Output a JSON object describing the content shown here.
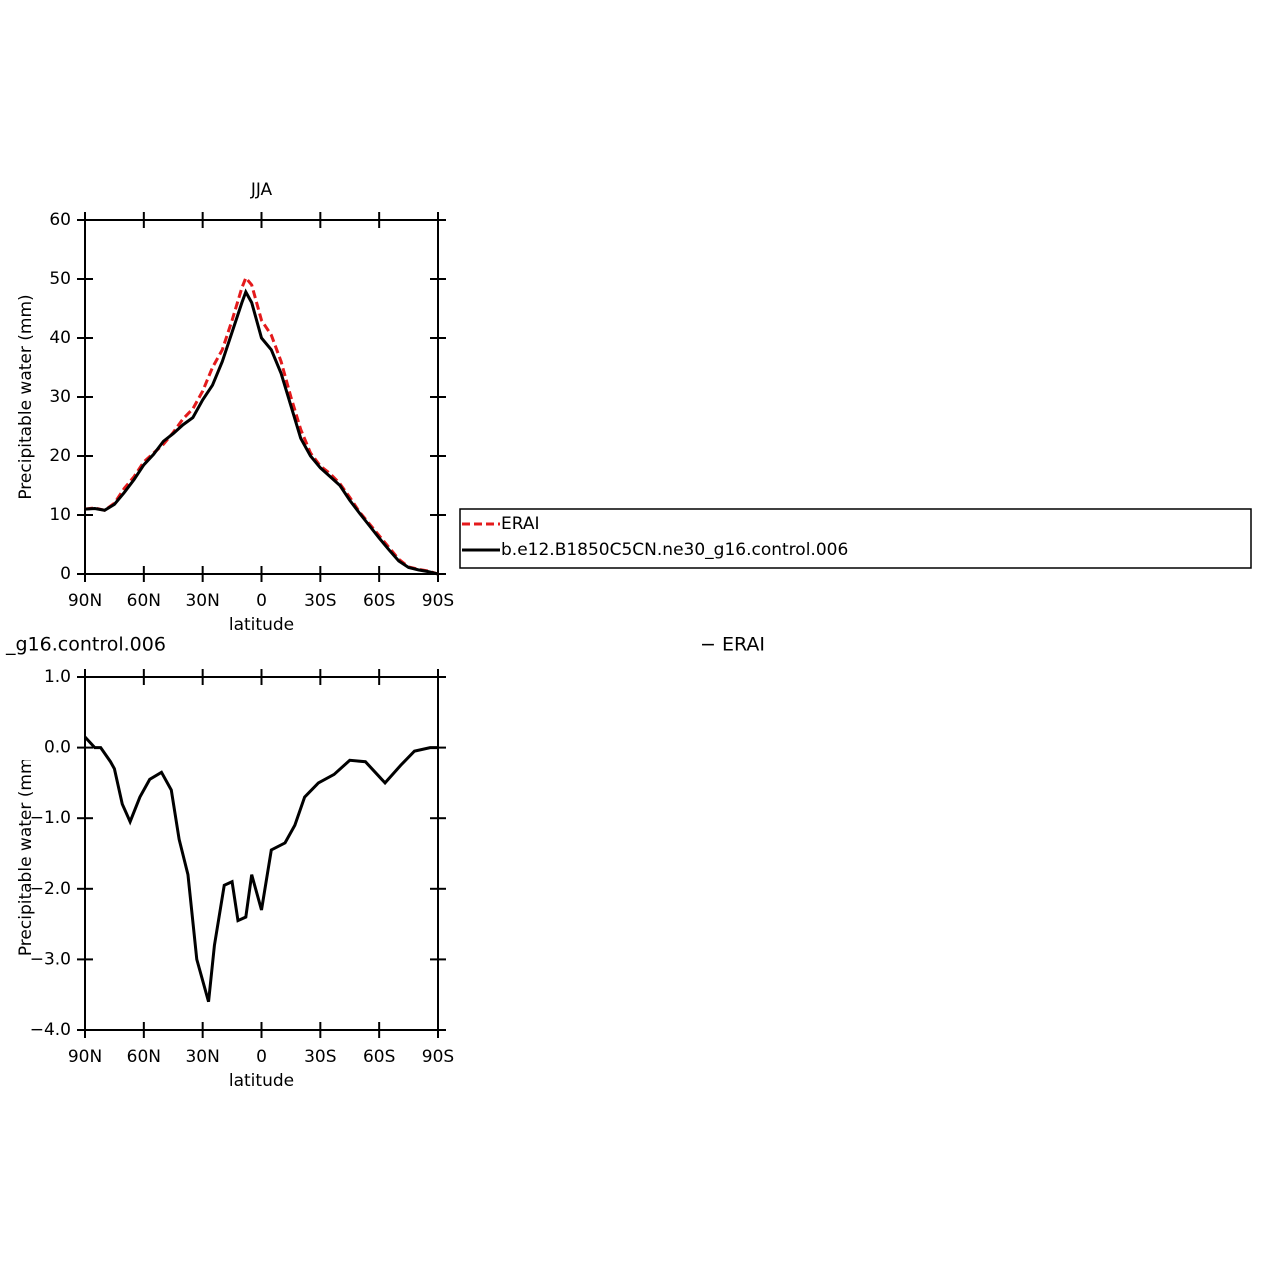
{
  "chart_data": [
    {
      "type": "line",
      "title": "JJA",
      "xlabel": "latitude",
      "ylabel": "Precipitable water (mm)",
      "xlim": [
        90,
        -90
      ],
      "xticks": [
        {
          "value": 90,
          "label": "90N"
        },
        {
          "value": 60,
          "label": "60N"
        },
        {
          "value": 30,
          "label": "30N"
        },
        0,
        {
          "value": -30,
          "label": "30S"
        },
        {
          "value": -60,
          "label": "60S"
        },
        {
          "value": -90,
          "label": "90S"
        }
      ],
      "ylim": [
        0,
        60
      ],
      "yticks": [
        0,
        10,
        20,
        30,
        40,
        50,
        60
      ],
      "x": [
        90,
        85,
        80,
        75,
        70,
        65,
        60,
        55,
        50,
        45,
        40,
        35,
        30,
        25,
        20,
        15,
        10,
        8,
        5,
        0,
        -5,
        -10,
        -15,
        -20,
        -25,
        -30,
        -35,
        -40,
        -45,
        -50,
        -55,
        -60,
        -65,
        -70,
        -75,
        -80,
        -85,
        -90
      ],
      "legend": "right",
      "series": [
        {
          "name": "ERAI",
          "color": "#e41a1c",
          "dash": true,
          "values": [
            11,
            11.2,
            10.8,
            12,
            14.5,
            16.5,
            19,
            20.5,
            22,
            24,
            26.3,
            28,
            31,
            35,
            38,
            43,
            48.5,
            50.2,
            49,
            43,
            40.5,
            36,
            30,
            24.5,
            20.5,
            18.3,
            17,
            15.3,
            13,
            10.5,
            8.5,
            6.5,
            4.5,
            2.5,
            1.2,
            0.8,
            0.5,
            0
          ]
        },
        {
          "name": "b.e12.B1850C5CN.ne30_g16.control.006",
          "color": "#000000",
          "dash": false,
          "values": [
            11,
            11.1,
            10.8,
            11.8,
            13.8,
            16,
            18.5,
            20.3,
            22.5,
            23.8,
            25.3,
            26.5,
            29.5,
            32,
            36,
            41,
            46,
            47.8,
            46,
            40,
            38,
            34,
            28.5,
            23,
            20,
            18,
            16.5,
            15,
            12.5,
            10.3,
            8.2,
            6.1,
            4.1,
            2.2,
            1.1,
            0.7,
            0.4,
            0
          ]
        }
      ]
    },
    {
      "type": "line",
      "title": "_g16.control.006",
      "subtitle": "− ERAI",
      "xlabel": "latitude",
      "ylabel": "Precipitable water (mm)",
      "xlim": [
        90,
        -90
      ],
      "xticks": [
        {
          "value": 90,
          "label": "90N"
        },
        {
          "value": 60,
          "label": "60N"
        },
        {
          "value": 30,
          "label": "30N"
        },
        0,
        {
          "value": -30,
          "label": "30S"
        },
        {
          "value": -60,
          "label": "60S"
        },
        {
          "value": -90,
          "label": "90S"
        }
      ],
      "ylim": [
        -4,
        1
      ],
      "yticks": [
        {
          "value": -4,
          "label": "−4.0"
        },
        {
          "value": -3,
          "label": "−3.0"
        },
        {
          "value": -2,
          "label": "−2.0"
        },
        {
          "value": -1,
          "label": "−1.0"
        },
        {
          "value": 0,
          "label": "0.0"
        },
        {
          "value": 1,
          "label": "1.0"
        }
      ],
      "x": [
        90,
        85,
        82,
        77,
        75,
        71,
        67,
        62,
        57,
        51,
        46,
        42,
        37.5,
        33,
        27,
        24,
        19,
        15,
        12,
        8,
        5,
        0,
        -5,
        -12,
        -17,
        -22,
        -29,
        -37,
        -45,
        -53,
        -63,
        -71,
        -78,
        -86,
        -90
      ],
      "series": [
        {
          "color": "#000000",
          "values": [
            0.15,
            0,
            0,
            -0.2,
            -0.3,
            -0.8,
            -1.05,
            -0.7,
            -0.45,
            -0.35,
            -0.6,
            -1.3,
            -1.8,
            -3.0,
            -3.6,
            -2.8,
            -1.95,
            -1.9,
            -2.45,
            -2.4,
            -1.8,
            -2.3,
            -1.45,
            -1.35,
            -1.1,
            -0.7,
            -0.5,
            -0.38,
            -0.18,
            -0.2,
            -0.5,
            -0.25,
            -0.05,
            0,
            0
          ]
        }
      ]
    }
  ]
}
